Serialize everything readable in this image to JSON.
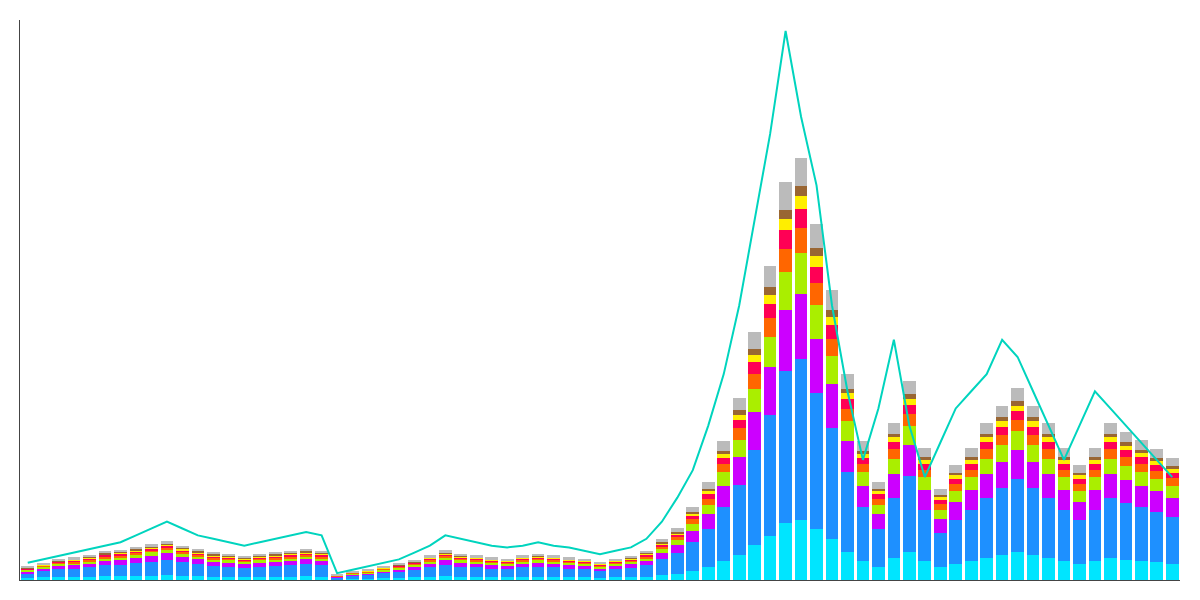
{
  "chart_data": {
    "type": "bar",
    "stacked": true,
    "grid": false,
    "tick_labels": false,
    "categories": [
      null,
      null,
      null,
      null,
      null,
      null,
      null,
      null,
      null,
      null,
      null,
      null,
      null,
      null,
      null,
      null,
      null,
      null,
      null,
      null,
      null,
      null,
      null,
      null,
      null,
      null,
      null,
      null,
      null,
      null,
      null,
      null,
      null,
      null,
      null,
      null,
      null,
      null,
      null,
      null,
      null,
      null,
      null,
      null,
      null,
      null,
      null,
      null,
      null,
      null,
      null,
      null,
      null,
      null,
      null,
      null,
      null,
      null,
      null,
      null,
      null,
      null,
      null,
      null,
      null,
      null,
      null,
      null,
      null,
      null,
      null,
      null,
      null,
      null,
      null
    ],
    "ylim": [
      0,
      88.49724
    ],
    "series": [
      {
        "color": "#00e5ff",
        "values": [
          0.3,
          0.4,
          0.5,
          0.5,
          0.5,
          0.6,
          0.6,
          0.7,
          0.7,
          0.8,
          0.7,
          0.6,
          0.5,
          0.5,
          0.4,
          0.5,
          0.5,
          0.5,
          0.6,
          0.5,
          0.1,
          0.2,
          0.2,
          0.3,
          0.3,
          0.4,
          0.5,
          0.6,
          0.5,
          0.5,
          0.4,
          0.4,
          0.5,
          0.5,
          0.5,
          0.4,
          0.4,
          0.3,
          0.4,
          0.4,
          0.5,
          0.8,
          1.0,
          1.5,
          2.0,
          3.0,
          4.0,
          5.5,
          7.0,
          9.0,
          9.5,
          8.0,
          6.5,
          4.5,
          3.0,
          2.0,
          3.5,
          4.5,
          3.0,
          2.0,
          2.5,
          3.0,
          3.5,
          4.0,
          4.5,
          4.0,
          3.5,
          3.0,
          2.5,
          3.0,
          3.5,
          3.2,
          3.0,
          2.8,
          2.5
        ]
      },
      {
        "color": "#1e90ff",
        "values": [
          0.8,
          1.0,
          1.2,
          1.3,
          1.5,
          1.7,
          1.8,
          2.0,
          2.2,
          2.4,
          2.1,
          1.9,
          1.7,
          1.6,
          1.5,
          1.6,
          1.7,
          1.8,
          1.9,
          1.8,
          0.3,
          0.5,
          0.6,
          0.8,
          1.0,
          1.2,
          1.5,
          1.8,
          1.6,
          1.5,
          1.4,
          1.3,
          1.5,
          1.6,
          1.5,
          1.4,
          1.3,
          1.1,
          1.3,
          1.5,
          1.8,
          2.5,
          3.2,
          4.5,
          6.0,
          8.5,
          11.0,
          15.0,
          19.0,
          24.0,
          25.5,
          21.5,
          17.5,
          12.5,
          8.5,
          6.0,
          9.5,
          12.0,
          8.0,
          5.5,
          7.0,
          8.0,
          9.5,
          10.5,
          11.5,
          10.5,
          9.5,
          8.0,
          7.0,
          8.0,
          9.5,
          9.0,
          8.5,
          8.0,
          7.5
        ]
      },
      {
        "color": "#cc00ff",
        "values": [
          0.3,
          0.4,
          0.5,
          0.5,
          0.6,
          0.7,
          0.7,
          0.8,
          0.9,
          1.0,
          0.85,
          0.75,
          0.68,
          0.65,
          0.6,
          0.65,
          0.68,
          0.72,
          0.75,
          0.72,
          0.12,
          0.2,
          0.25,
          0.32,
          0.4,
          0.48,
          0.6,
          0.72,
          0.65,
          0.6,
          0.56,
          0.52,
          0.6,
          0.65,
          0.6,
          0.56,
          0.52,
          0.44,
          0.52,
          0.6,
          0.72,
          1.0,
          1.28,
          1.8,
          2.4,
          3.4,
          4.4,
          6.0,
          7.6,
          9.6,
          10.2,
          8.6,
          7.0,
          5.0,
          3.4,
          2.4,
          3.8,
          4.8,
          3.2,
          2.2,
          2.8,
          3.2,
          3.8,
          4.2,
          4.6,
          4.2,
          3.8,
          3.2,
          2.8,
          3.2,
          3.8,
          3.6,
          3.4,
          3.2,
          3.0
        ]
      },
      {
        "color": "#aaee00",
        "values": [
          0.2,
          0.3,
          0.35,
          0.38,
          0.4,
          0.45,
          0.48,
          0.5,
          0.55,
          0.6,
          0.52,
          0.48,
          0.43,
          0.41,
          0.38,
          0.41,
          0.43,
          0.45,
          0.48,
          0.45,
          0.08,
          0.13,
          0.16,
          0.2,
          0.25,
          0.3,
          0.38,
          0.45,
          0.41,
          0.38,
          0.35,
          0.33,
          0.38,
          0.41,
          0.38,
          0.35,
          0.33,
          0.28,
          0.33,
          0.38,
          0.45,
          0.63,
          0.8,
          1.1,
          1.5,
          2.1,
          2.8,
          3.75,
          4.75,
          6.0,
          6.4,
          5.4,
          4.4,
          3.1,
          2.1,
          1.5,
          2.38,
          3.0,
          2.0,
          1.38,
          1.75,
          2.0,
          2.38,
          2.63,
          2.88,
          2.63,
          2.38,
          2.0,
          1.75,
          2.0,
          2.38,
          2.25,
          2.13,
          2.0,
          1.88
        ]
      },
      {
        "color": "#ff6600",
        "values": [
          0.1,
          0.15,
          0.2,
          0.22,
          0.25,
          0.28,
          0.3,
          0.32,
          0.34,
          0.36,
          0.32,
          0.3,
          0.27,
          0.26,
          0.24,
          0.26,
          0.27,
          0.28,
          0.3,
          0.28,
          0.05,
          0.08,
          0.1,
          0.13,
          0.16,
          0.19,
          0.24,
          0.28,
          0.26,
          0.24,
          0.22,
          0.21,
          0.24,
          0.26,
          0.24,
          0.22,
          0.21,
          0.18,
          0.21,
          0.24,
          0.28,
          0.4,
          0.5,
          0.7,
          0.95,
          1.3,
          1.75,
          2.35,
          3.0,
          3.75,
          4.0,
          3.4,
          2.75,
          1.95,
          1.3,
          0.95,
          1.5,
          1.9,
          1.25,
          0.87,
          1.1,
          1.25,
          1.5,
          1.65,
          1.8,
          1.65,
          1.5,
          1.25,
          1.1,
          1.25,
          1.5,
          1.41,
          1.33,
          1.25,
          1.18
        ]
      },
      {
        "color": "#ff0055",
        "values": [
          0.1,
          0.1,
          0.15,
          0.17,
          0.2,
          0.22,
          0.24,
          0.25,
          0.27,
          0.28,
          0.25,
          0.23,
          0.21,
          0.2,
          0.18,
          0.2,
          0.21,
          0.22,
          0.23,
          0.22,
          0.04,
          0.06,
          0.08,
          0.1,
          0.12,
          0.15,
          0.18,
          0.22,
          0.2,
          0.18,
          0.17,
          0.16,
          0.18,
          0.2,
          0.18,
          0.17,
          0.16,
          0.14,
          0.16,
          0.18,
          0.22,
          0.31,
          0.39,
          0.54,
          0.73,
          1.0,
          1.35,
          1.8,
          2.3,
          2.9,
          3.08,
          2.61,
          2.12,
          1.5,
          1.0,
          0.73,
          1.15,
          1.46,
          0.96,
          0.67,
          0.85,
          0.96,
          1.15,
          1.27,
          1.39,
          1.27,
          1.15,
          0.96,
          0.85,
          0.96,
          1.15,
          1.08,
          1.02,
          0.96,
          0.91
        ]
      },
      {
        "color": "#ffee00",
        "values": [
          0.05,
          0.07,
          0.1,
          0.12,
          0.13,
          0.14,
          0.15,
          0.16,
          0.17,
          0.18,
          0.16,
          0.15,
          0.14,
          0.13,
          0.12,
          0.13,
          0.14,
          0.14,
          0.15,
          0.14,
          0.03,
          0.04,
          0.05,
          0.06,
          0.08,
          0.09,
          0.12,
          0.14,
          0.13,
          0.12,
          0.11,
          0.1,
          0.12,
          0.13,
          0.12,
          0.11,
          0.1,
          0.09,
          0.1,
          0.12,
          0.14,
          0.2,
          0.25,
          0.34,
          0.46,
          0.63,
          0.85,
          1.14,
          1.45,
          1.83,
          1.95,
          1.65,
          1.34,
          0.95,
          0.63,
          0.46,
          0.73,
          0.92,
          0.61,
          0.42,
          0.54,
          0.61,
          0.73,
          0.8,
          0.88,
          0.8,
          0.73,
          0.61,
          0.54,
          0.61,
          0.73,
          0.68,
          0.65,
          0.61,
          0.57
        ]
      },
      {
        "color": "#996633",
        "values": [
          0.05,
          0.07,
          0.08,
          0.1,
          0.1,
          0.12,
          0.12,
          0.13,
          0.14,
          0.14,
          0.13,
          0.12,
          0.11,
          0.11,
          0.1,
          0.11,
          0.11,
          0.12,
          0.12,
          0.12,
          0.02,
          0.03,
          0.04,
          0.05,
          0.06,
          0.07,
          0.1,
          0.12,
          0.11,
          0.1,
          0.09,
          0.08,
          0.1,
          0.11,
          0.1,
          0.09,
          0.08,
          0.07,
          0.08,
          0.1,
          0.12,
          0.16,
          0.2,
          0.28,
          0.37,
          0.5,
          0.68,
          0.91,
          1.16,
          1.46,
          1.56,
          1.32,
          1.07,
          0.76,
          0.5,
          0.37,
          0.58,
          0.74,
          0.49,
          0.34,
          0.43,
          0.49,
          0.58,
          0.64,
          0.7,
          0.64,
          0.58,
          0.49,
          0.43,
          0.49,
          0.58,
          0.55,
          0.52,
          0.49,
          0.46
        ]
      },
      {
        "color": "#bbbbbb",
        "values": [
          0.2,
          0.25,
          0.28,
          0.3,
          0.32,
          0.35,
          0.37,
          0.38,
          0.4,
          0.42,
          0.38,
          0.36,
          0.33,
          0.32,
          0.3,
          0.32,
          0.33,
          0.34,
          0.36,
          0.34,
          0.06,
          0.1,
          0.12,
          0.15,
          0.18,
          0.22,
          0.28,
          0.34,
          0.32,
          0.3,
          0.28,
          0.26,
          0.3,
          0.32,
          0.3,
          0.28,
          0.26,
          0.22,
          0.26,
          0.3,
          0.34,
          0.47,
          0.6,
          0.82,
          1.1,
          1.5,
          2.0,
          2.7,
          3.4,
          4.3,
          4.55,
          3.85,
          3.12,
          2.22,
          1.5,
          1.1,
          1.7,
          2.15,
          1.42,
          0.98,
          1.25,
          1.42,
          1.7,
          1.87,
          2.04,
          1.87,
          1.7,
          1.42,
          1.25,
          1.42,
          1.7,
          1.6,
          1.52,
          1.42,
          1.34
        ]
      },
      {
        "type": "line",
        "color": "#00d4be",
        "values": [
          2.7113125,
          3.253575,
          3.7958375,
          4.3381,
          4.8803625,
          5.422625,
          5.9648875,
          7.0494125,
          8.1339375,
          9.2184625,
          8.1339375,
          7.0494125,
          6.50715,
          5.9648875,
          5.422625,
          5.9648875,
          6.50715,
          7.0494125,
          7.591675,
          7.0494125,
          1.084525,
          1.6267875,
          2.16905,
          2.7113125,
          3.253575,
          4.3381,
          5.422625,
          7.0494125,
          6.50715,
          5.9648875,
          5.422625,
          5.15149375,
          5.422625,
          5.9648875,
          5.422625,
          5.15149375,
          4.60923125,
          4.06696875,
          4.60923125,
          5.15149375,
          6.50715,
          9.2184625,
          13.0143,
          17.3524,
          24.4018125,
          32.53575,
          43.381,
          56.9375625,
          70.494125,
          86.762,
          73.2054375,
          62.3601875,
          43.381,
          29.8244375,
          18.9791875,
          27.113125,
          37.958375,
          24.4018125,
          16.267875,
          21.6905,
          27.113125,
          29.8244375,
          32.53575,
          37.958375,
          35.2470625,
          29.8244375,
          24.4018125,
          18.9791875,
          24.4018125,
          29.8244375,
          27.113125,
          24.4018125,
          21.6905,
          18.9791875,
          16.267875
        ]
      }
    ]
  }
}
